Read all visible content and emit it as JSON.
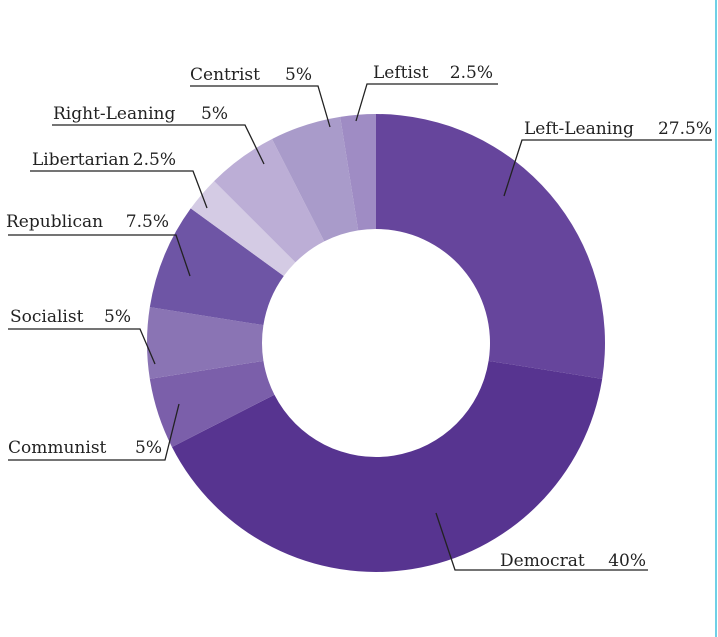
{
  "chart_data": {
    "type": "pie",
    "variant": "donut",
    "title": "",
    "unit": "%",
    "slices": [
      {
        "label": "Left-Leaning",
        "value": 27.5,
        "display": "27.5%",
        "color": "#66459c"
      },
      {
        "label": "Democrat",
        "value": 40,
        "display": "40%",
        "color": "#573490"
      },
      {
        "label": "Communist",
        "value": 5,
        "display": "5%",
        "color": "#7b5faa"
      },
      {
        "label": "Socialist",
        "value": 5,
        "display": "5%",
        "color": "#8a74b4"
      },
      {
        "label": "Republican",
        "value": 7.5,
        "display": "7.5%",
        "color": "#6e55a5"
      },
      {
        "label": "Libertarian",
        "value": 2.5,
        "display": "2.5%",
        "color": "#d4cbe4"
      },
      {
        "label": "Right-Leaning",
        "value": 5,
        "display": "5%",
        "color": "#bcaed6"
      },
      {
        "label": "Centrist",
        "value": 5,
        "display": "5%",
        "color": "#a99bca"
      },
      {
        "label": "Leftist",
        "value": 2.5,
        "display": "2.5%",
        "color": "#9f8cc4"
      }
    ],
    "legend": "none"
  }
}
